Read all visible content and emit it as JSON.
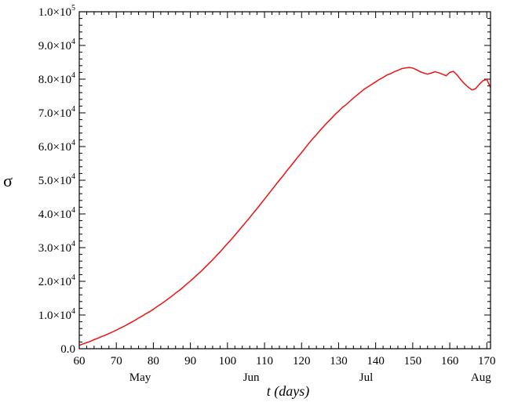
{
  "chart_data": {
    "type": "line",
    "xlabel": "t (days)",
    "ylabel": "σ",
    "xlim": [
      60,
      171
    ],
    "ylim": [
      0,
      100000
    ],
    "grid": false,
    "x_ticks": [
      {
        "value": 60,
        "label": "60"
      },
      {
        "value": 70,
        "label": "70"
      },
      {
        "value": 80,
        "label": "80"
      },
      {
        "value": 90,
        "label": "90"
      },
      {
        "value": 100,
        "label": "100"
      },
      {
        "value": 110,
        "label": "110"
      },
      {
        "value": 120,
        "label": "120"
      },
      {
        "value": 130,
        "label": "130"
      },
      {
        "value": 140,
        "label": "140"
      },
      {
        "value": 150,
        "label": "150"
      },
      {
        "value": 160,
        "label": "160"
      },
      {
        "value": 170,
        "label": "170"
      }
    ],
    "y_ticks": [
      {
        "value": 0,
        "mantissa": "0.0",
        "exponent": ""
      },
      {
        "value": 10000,
        "mantissa": "1.0×10",
        "exponent": "4"
      },
      {
        "value": 20000,
        "mantissa": "2.0×10",
        "exponent": "4"
      },
      {
        "value": 30000,
        "mantissa": "3.0×10",
        "exponent": "4"
      },
      {
        "value": 40000,
        "mantissa": "4.0×10",
        "exponent": "4"
      },
      {
        "value": 50000,
        "mantissa": "5.0×10",
        "exponent": "4"
      },
      {
        "value": 60000,
        "mantissa": "6.0×10",
        "exponent": "4"
      },
      {
        "value": 70000,
        "mantissa": "7.0×10",
        "exponent": "4"
      },
      {
        "value": 80000,
        "mantissa": "8.0×10",
        "exponent": "4"
      },
      {
        "value": 90000,
        "mantissa": "9.0×10",
        "exponent": "4"
      },
      {
        "value": 100000,
        "mantissa": "1.0×10",
        "exponent": "5"
      }
    ],
    "month_labels": [
      {
        "value": 76,
        "label": "May"
      },
      {
        "value": 106,
        "label": "Jun"
      },
      {
        "value": 137,
        "label": "Jul"
      },
      {
        "value": 168,
        "label": "Aug"
      }
    ],
    "series": [
      {
        "color": "#ee1111",
        "x": [
          60,
          61,
          62,
          63,
          64,
          65,
          66,
          67,
          68,
          69,
          70,
          71,
          72,
          73,
          74,
          75,
          76,
          77,
          78,
          79,
          80,
          81,
          82,
          83,
          84,
          85,
          86,
          87,
          88,
          89,
          90,
          91,
          92,
          93,
          94,
          95,
          96,
          97,
          98,
          99,
          100,
          101,
          102,
          103,
          104,
          105,
          106,
          107,
          108,
          109,
          110,
          111,
          112,
          113,
          114,
          115,
          116,
          117,
          118,
          119,
          120,
          121,
          122,
          123,
          124,
          125,
          126,
          127,
          128,
          129,
          130,
          131,
          132,
          133,
          134,
          135,
          136,
          137,
          138,
          139,
          140,
          141,
          142,
          143,
          144,
          145,
          146,
          147,
          148,
          149,
          150,
          151,
          152,
          153,
          154,
          155,
          156,
          157,
          158,
          159,
          160,
          161,
          162,
          163,
          164,
          165,
          166,
          167,
          168,
          169,
          170,
          171
        ],
        "y": [
          1000,
          1400,
          1800,
          2200,
          2700,
          3100,
          3600,
          4000,
          4500,
          5000,
          5500,
          6100,
          6600,
          7200,
          7800,
          8400,
          9100,
          9700,
          10400,
          11000,
          11700,
          12500,
          13200,
          14000,
          14800,
          15600,
          16500,
          17300,
          18200,
          19200,
          20100,
          21100,
          22100,
          23100,
          24200,
          25300,
          26400,
          27600,
          28700,
          30000,
          31200,
          32400,
          33700,
          35000,
          36300,
          37600,
          38900,
          40300,
          41600,
          43000,
          44400,
          45800,
          47200,
          48600,
          50000,
          51300,
          52800,
          54100,
          55500,
          56900,
          58200,
          59600,
          61000,
          62300,
          63500,
          64800,
          66000,
          67200,
          68300,
          69500,
          70500,
          71600,
          72400,
          73400,
          74400,
          75300,
          76200,
          77100,
          77800,
          78500,
          79200,
          79900,
          80500,
          81200,
          81600,
          82200,
          82600,
          83100,
          83300,
          83500,
          83300,
          82800,
          82200,
          81800,
          81500,
          81800,
          82200,
          81900,
          81500,
          81000,
          82000,
          82300,
          81200,
          79800,
          78600,
          77600,
          76800,
          77200,
          78500,
          79600,
          79900,
          77500
        ]
      }
    ]
  }
}
